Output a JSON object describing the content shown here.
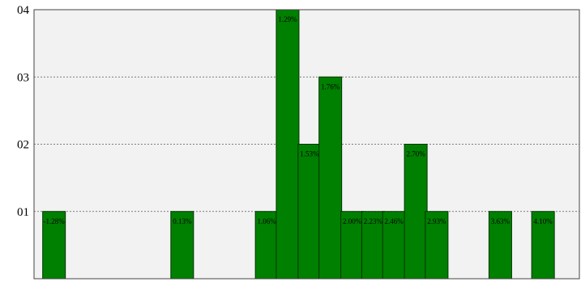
{
  "chart_data": {
    "type": "bar",
    "title": "",
    "xlabel": "",
    "ylabel": "",
    "ylim": [
      0,
      4
    ],
    "y_ticks": [
      {
        "value": 1,
        "label": "01"
      },
      {
        "value": 2,
        "label": "02"
      },
      {
        "value": 3,
        "label": "03"
      },
      {
        "value": 4,
        "label": "04"
      }
    ],
    "grid": "horizontal-dotted",
    "x_range": [
      -1.5,
      4.5
    ],
    "bins": [
      {
        "x": -1.28,
        "count": 1,
        "label": "-1.28%"
      },
      {
        "x": 0.13,
        "count": 1,
        "label": "0.13%"
      },
      {
        "x": 1.06,
        "count": 1,
        "label": "1.06%"
      },
      {
        "x": 1.29,
        "count": 4,
        "label": "1.29%"
      },
      {
        "x": 1.53,
        "count": 2,
        "label": "1.53%"
      },
      {
        "x": 1.76,
        "count": 3,
        "label": "1.76%"
      },
      {
        "x": 2.0,
        "count": 1,
        "label": "2.00%"
      },
      {
        "x": 2.23,
        "count": 1,
        "label": "2.23%"
      },
      {
        "x": 2.46,
        "count": 1,
        "label": "2.46%"
      },
      {
        "x": 2.7,
        "count": 2,
        "label": "2.70%"
      },
      {
        "x": 2.93,
        "count": 1,
        "label": "2.93%"
      },
      {
        "x": 3.63,
        "count": 1,
        "label": "3.63%"
      },
      {
        "x": 4.1,
        "count": 1,
        "label": "4.10%"
      }
    ],
    "colors": {
      "bar": "#008000",
      "bar_stroke": "#003300",
      "plot_background": "#f2f2f2",
      "grid": "#555555"
    }
  }
}
